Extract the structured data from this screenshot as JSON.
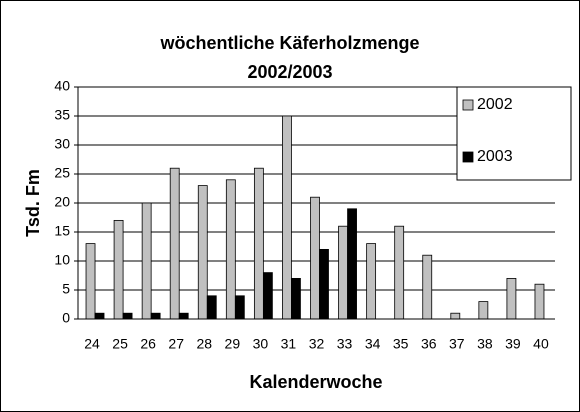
{
  "chart_data": {
    "type": "bar",
    "title": "wöchentliche Käferholzmenge",
    "subtitle": "2002/2003",
    "x_label": "Kalenderwoche",
    "y_label": "Tsd. Fm",
    "categories": [
      "24",
      "25",
      "26",
      "27",
      "28",
      "29",
      "30",
      "31",
      "32",
      "33",
      "34",
      "35",
      "36",
      "37",
      "38",
      "39",
      "40"
    ],
    "series": [
      {
        "name": "2002",
        "color": "#c0c0c0",
        "values": [
          13,
          17,
          20,
          26,
          23,
          24,
          26,
          35,
          21,
          16,
          13,
          16,
          11,
          1,
          3,
          7,
          6
        ]
      },
      {
        "name": "2003",
        "color": "#000000",
        "values": [
          1,
          1,
          1,
          1,
          4,
          4,
          8,
          7,
          12,
          19,
          null,
          null,
          null,
          null,
          null,
          null,
          null
        ]
      }
    ],
    "ylim": [
      0,
      40
    ],
    "yticks": [
      0,
      5,
      10,
      15,
      20,
      25,
      30,
      35,
      40
    ],
    "grid": true,
    "legend": "right"
  }
}
